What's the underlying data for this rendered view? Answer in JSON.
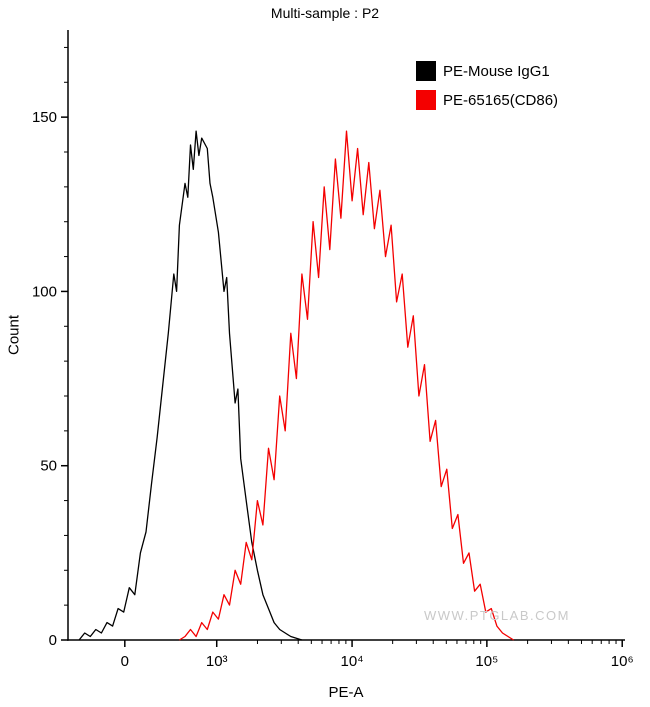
{
  "watermark": "WWW.PTGLAB.COM",
  "chart_data": {
    "type": "line",
    "subtype": "flow-cytometry-histogram",
    "title": "Multi-sample : P2",
    "xlabel": "PE-A",
    "ylabel": "Count",
    "x_scale": "biexponential-log",
    "grid": false,
    "ylim": [
      0,
      175
    ],
    "y_ticks": [
      0,
      50,
      100,
      150
    ],
    "y_minor_step": 10,
    "x_ticks": [
      {
        "label": "0",
        "pos": 0.102
      },
      {
        "label": "10³",
        "pos": 0.267
      },
      {
        "label": "10⁴",
        "pos": 0.51
      },
      {
        "label": "10⁵",
        "pos": 0.752
      },
      {
        "label": "10⁶",
        "pos": 0.995
      }
    ],
    "legend": {
      "position": "top-right",
      "entries": [
        {
          "label": "PE-Mouse IgG1",
          "color": "#000000"
        },
        {
          "label": "PE-65165(CD86)",
          "color": "#f40000"
        }
      ]
    },
    "series": [
      {
        "name": "PE-Mouse IgG1",
        "color": "#000000",
        "peak_x_approx": "~7e2",
        "peak_count": 146,
        "points": [
          [
            0.02,
            0
          ],
          [
            0.03,
            2
          ],
          [
            0.04,
            1
          ],
          [
            0.05,
            3
          ],
          [
            0.06,
            2
          ],
          [
            0.07,
            5
          ],
          [
            0.08,
            4
          ],
          [
            0.09,
            9
          ],
          [
            0.1,
            8
          ],
          [
            0.11,
            15
          ],
          [
            0.12,
            13
          ],
          [
            0.13,
            25
          ],
          [
            0.14,
            31
          ],
          [
            0.15,
            45
          ],
          [
            0.16,
            58
          ],
          [
            0.17,
            73
          ],
          [
            0.18,
            88
          ],
          [
            0.19,
            105
          ],
          [
            0.195,
            100
          ],
          [
            0.2,
            119
          ],
          [
            0.21,
            131
          ],
          [
            0.215,
            127
          ],
          [
            0.22,
            142
          ],
          [
            0.225,
            135
          ],
          [
            0.23,
            146
          ],
          [
            0.235,
            139
          ],
          [
            0.24,
            144
          ],
          [
            0.25,
            141
          ],
          [
            0.255,
            131
          ],
          [
            0.26,
            127
          ],
          [
            0.27,
            117
          ],
          [
            0.28,
            100
          ],
          [
            0.285,
            104
          ],
          [
            0.29,
            88
          ],
          [
            0.3,
            68
          ],
          [
            0.305,
            72
          ],
          [
            0.31,
            52
          ],
          [
            0.32,
            40
          ],
          [
            0.33,
            28
          ],
          [
            0.34,
            20
          ],
          [
            0.35,
            13
          ],
          [
            0.36,
            9
          ],
          [
            0.37,
            5
          ],
          [
            0.38,
            3
          ],
          [
            0.39,
            2
          ],
          [
            0.4,
            1
          ],
          [
            0.42,
            0
          ]
        ]
      },
      {
        "name": "PE-65165(CD86)",
        "color": "#f40000",
        "peak_x_approx": "~1e4",
        "peak_count": 146,
        "points": [
          [
            0.2,
            0
          ],
          [
            0.21,
            1
          ],
          [
            0.22,
            3
          ],
          [
            0.23,
            1
          ],
          [
            0.24,
            5
          ],
          [
            0.25,
            3
          ],
          [
            0.26,
            8
          ],
          [
            0.27,
            6
          ],
          [
            0.28,
            13
          ],
          [
            0.29,
            10
          ],
          [
            0.3,
            20
          ],
          [
            0.31,
            16
          ],
          [
            0.32,
            28
          ],
          [
            0.33,
            23
          ],
          [
            0.34,
            40
          ],
          [
            0.35,
            33
          ],
          [
            0.36,
            55
          ],
          [
            0.37,
            46
          ],
          [
            0.38,
            70
          ],
          [
            0.39,
            60
          ],
          [
            0.4,
            88
          ],
          [
            0.41,
            75
          ],
          [
            0.42,
            105
          ],
          [
            0.43,
            92
          ],
          [
            0.44,
            120
          ],
          [
            0.45,
            104
          ],
          [
            0.46,
            130
          ],
          [
            0.47,
            112
          ],
          [
            0.48,
            138
          ],
          [
            0.49,
            121
          ],
          [
            0.5,
            146
          ],
          [
            0.51,
            126
          ],
          [
            0.52,
            141
          ],
          [
            0.53,
            122
          ],
          [
            0.54,
            137
          ],
          [
            0.55,
            118
          ],
          [
            0.56,
            129
          ],
          [
            0.57,
            110
          ],
          [
            0.58,
            119
          ],
          [
            0.59,
            97
          ],
          [
            0.6,
            105
          ],
          [
            0.61,
            84
          ],
          [
            0.62,
            93
          ],
          [
            0.63,
            70
          ],
          [
            0.64,
            79
          ],
          [
            0.65,
            57
          ],
          [
            0.66,
            63
          ],
          [
            0.67,
            44
          ],
          [
            0.68,
            49
          ],
          [
            0.69,
            32
          ],
          [
            0.7,
            36
          ],
          [
            0.71,
            22
          ],
          [
            0.72,
            25
          ],
          [
            0.73,
            14
          ],
          [
            0.74,
            16
          ],
          [
            0.75,
            8
          ],
          [
            0.76,
            9
          ],
          [
            0.77,
            4
          ],
          [
            0.78,
            2
          ],
          [
            0.79,
            1
          ],
          [
            0.8,
            0
          ]
        ]
      }
    ]
  }
}
